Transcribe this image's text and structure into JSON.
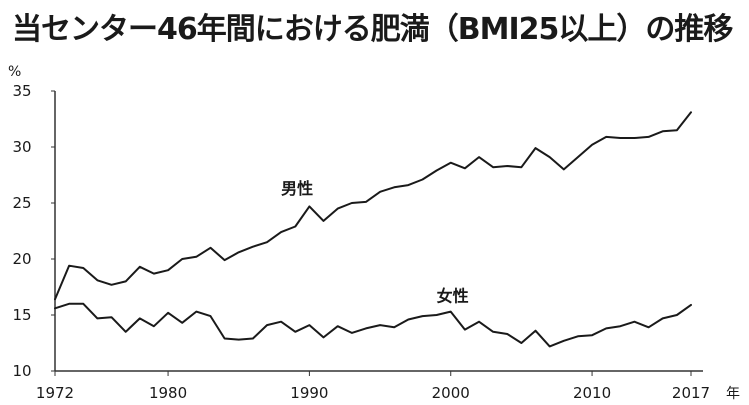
{
  "title": "当センター46年間における肥満（BMI25以上）の推移",
  "chart_data": {
    "type": "line",
    "ylabel": "%",
    "xlabel": "年",
    "ylim": [
      10,
      35
    ],
    "xlim": [
      1972,
      2017
    ],
    "yticks": [
      10,
      15,
      20,
      25,
      30,
      35
    ],
    "xticks": [
      1972,
      1980,
      1990,
      2000,
      2010,
      2017
    ],
    "x": [
      1972,
      1973,
      1974,
      1975,
      1976,
      1977,
      1978,
      1979,
      1980,
      1981,
      1982,
      1983,
      1984,
      1985,
      1986,
      1987,
      1988,
      1989,
      1990,
      1991,
      1992,
      1993,
      1994,
      1995,
      1996,
      1997,
      1998,
      1999,
      2000,
      2001,
      2002,
      2003,
      2004,
      2005,
      2006,
      2007,
      2008,
      2009,
      2010,
      2011,
      2012,
      2013,
      2014,
      2015,
      2016,
      2017
    ],
    "series": [
      {
        "name": "男性",
        "values": [
          16.4,
          19.4,
          19.2,
          18.1,
          17.7,
          18.0,
          19.3,
          18.7,
          19.0,
          20.0,
          20.2,
          21.0,
          19.9,
          20.6,
          21.1,
          21.5,
          22.4,
          22.9,
          24.7,
          23.4,
          24.5,
          25.0,
          25.1,
          26.0,
          26.4,
          26.6,
          27.1,
          27.9,
          28.6,
          28.1,
          29.1,
          28.2,
          28.3,
          28.2,
          29.9,
          29.1,
          28.0,
          29.1,
          30.2,
          30.9,
          30.8,
          30.8,
          30.9,
          31.4,
          31.5,
          33.1
        ]
      },
      {
        "name": "女性",
        "values": [
          15.6,
          16.0,
          16.0,
          14.7,
          14.8,
          13.5,
          14.7,
          14.0,
          15.2,
          14.3,
          15.3,
          14.9,
          12.9,
          12.8,
          12.9,
          14.1,
          14.4,
          13.5,
          14.1,
          13.0,
          14.0,
          13.4,
          13.8,
          14.1,
          13.9,
          14.6,
          14.9,
          15.0,
          15.3,
          13.7,
          14.4,
          13.5,
          13.3,
          12.5,
          13.6,
          12.2,
          12.7,
          13.1,
          13.2,
          13.8,
          14.0,
          14.4,
          13.9,
          14.7,
          15.0,
          15.9
        ]
      }
    ],
    "label_positions": {
      "男性": {
        "x": 1988,
        "y": 25.8
      },
      "女性": {
        "x": 1999,
        "y": 16.2
      }
    }
  }
}
